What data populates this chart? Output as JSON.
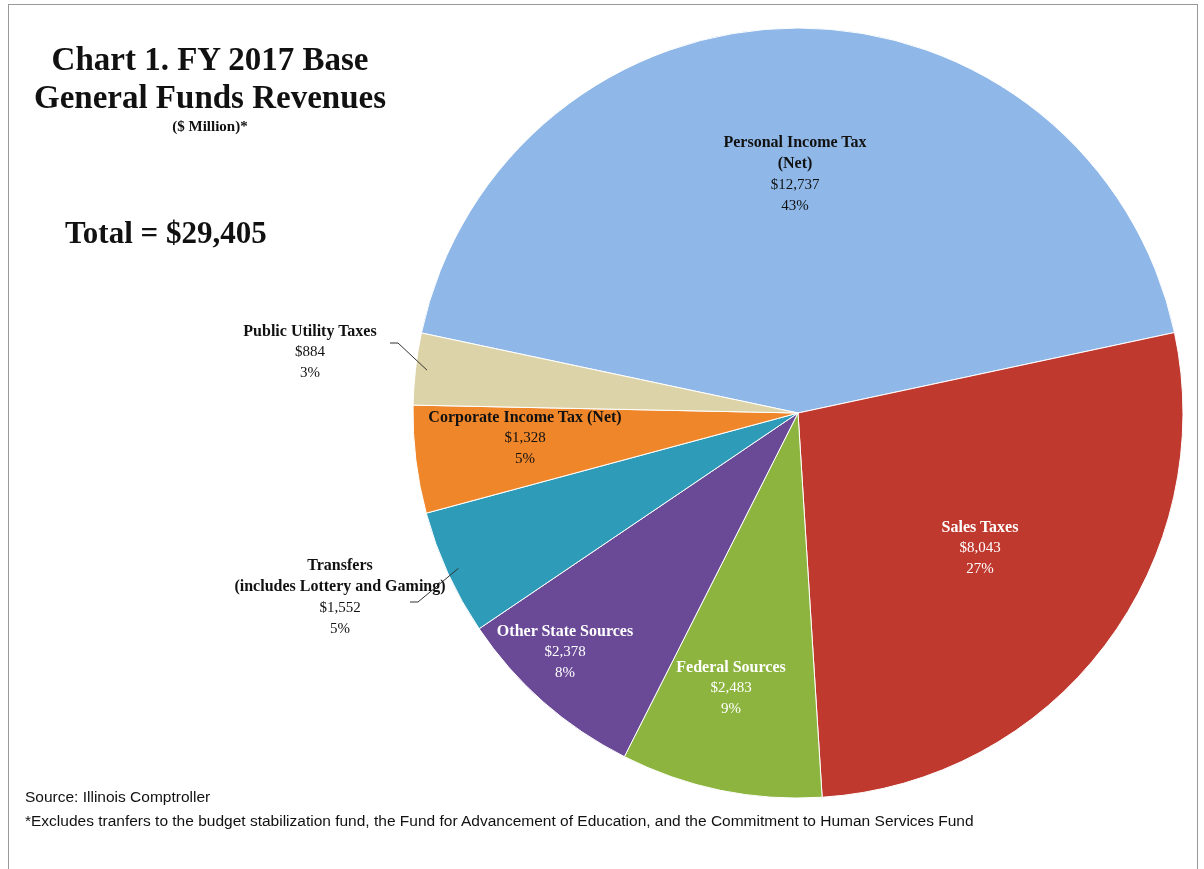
{
  "chart_data": {
    "type": "pie",
    "title": "Chart 1.  FY 2017 Base General Funds Revenues",
    "subtitle": "($ Million)*",
    "categories": [
      "Personal Income Tax (Net)",
      "Sales Taxes",
      "Federal Sources",
      "Other State Sources",
      "Transfers (includes Lottery and Gaming)",
      "Corporate Income Tax (Net)",
      "Public Utility Taxes"
    ],
    "values": [
      12737,
      8043,
      2483,
      2378,
      1552,
      1328,
      884
    ],
    "colors": [
      "#8fb8e8",
      "#c0392f",
      "#8db43e",
      "#6a4a96",
      "#2e9bb8",
      "#f0862a",
      "#ddd3a8"
    ],
    "value_labels": [
      "$12,737\n43%",
      "$8,043\n27%",
      "$2,483\n9%",
      "$2,378\n8%",
      "$1,552\n5%",
      "$1,328\n5%",
      "$884\n3%"
    ],
    "annotations": [
      "Total = $29,405",
      "Source:  Illinois Comptroller",
      "*Excludes tranfers to the budget stabilization  fund, the Fund for Advancement of Education, and the Commitment to Human Services Fund"
    ]
  }
}
